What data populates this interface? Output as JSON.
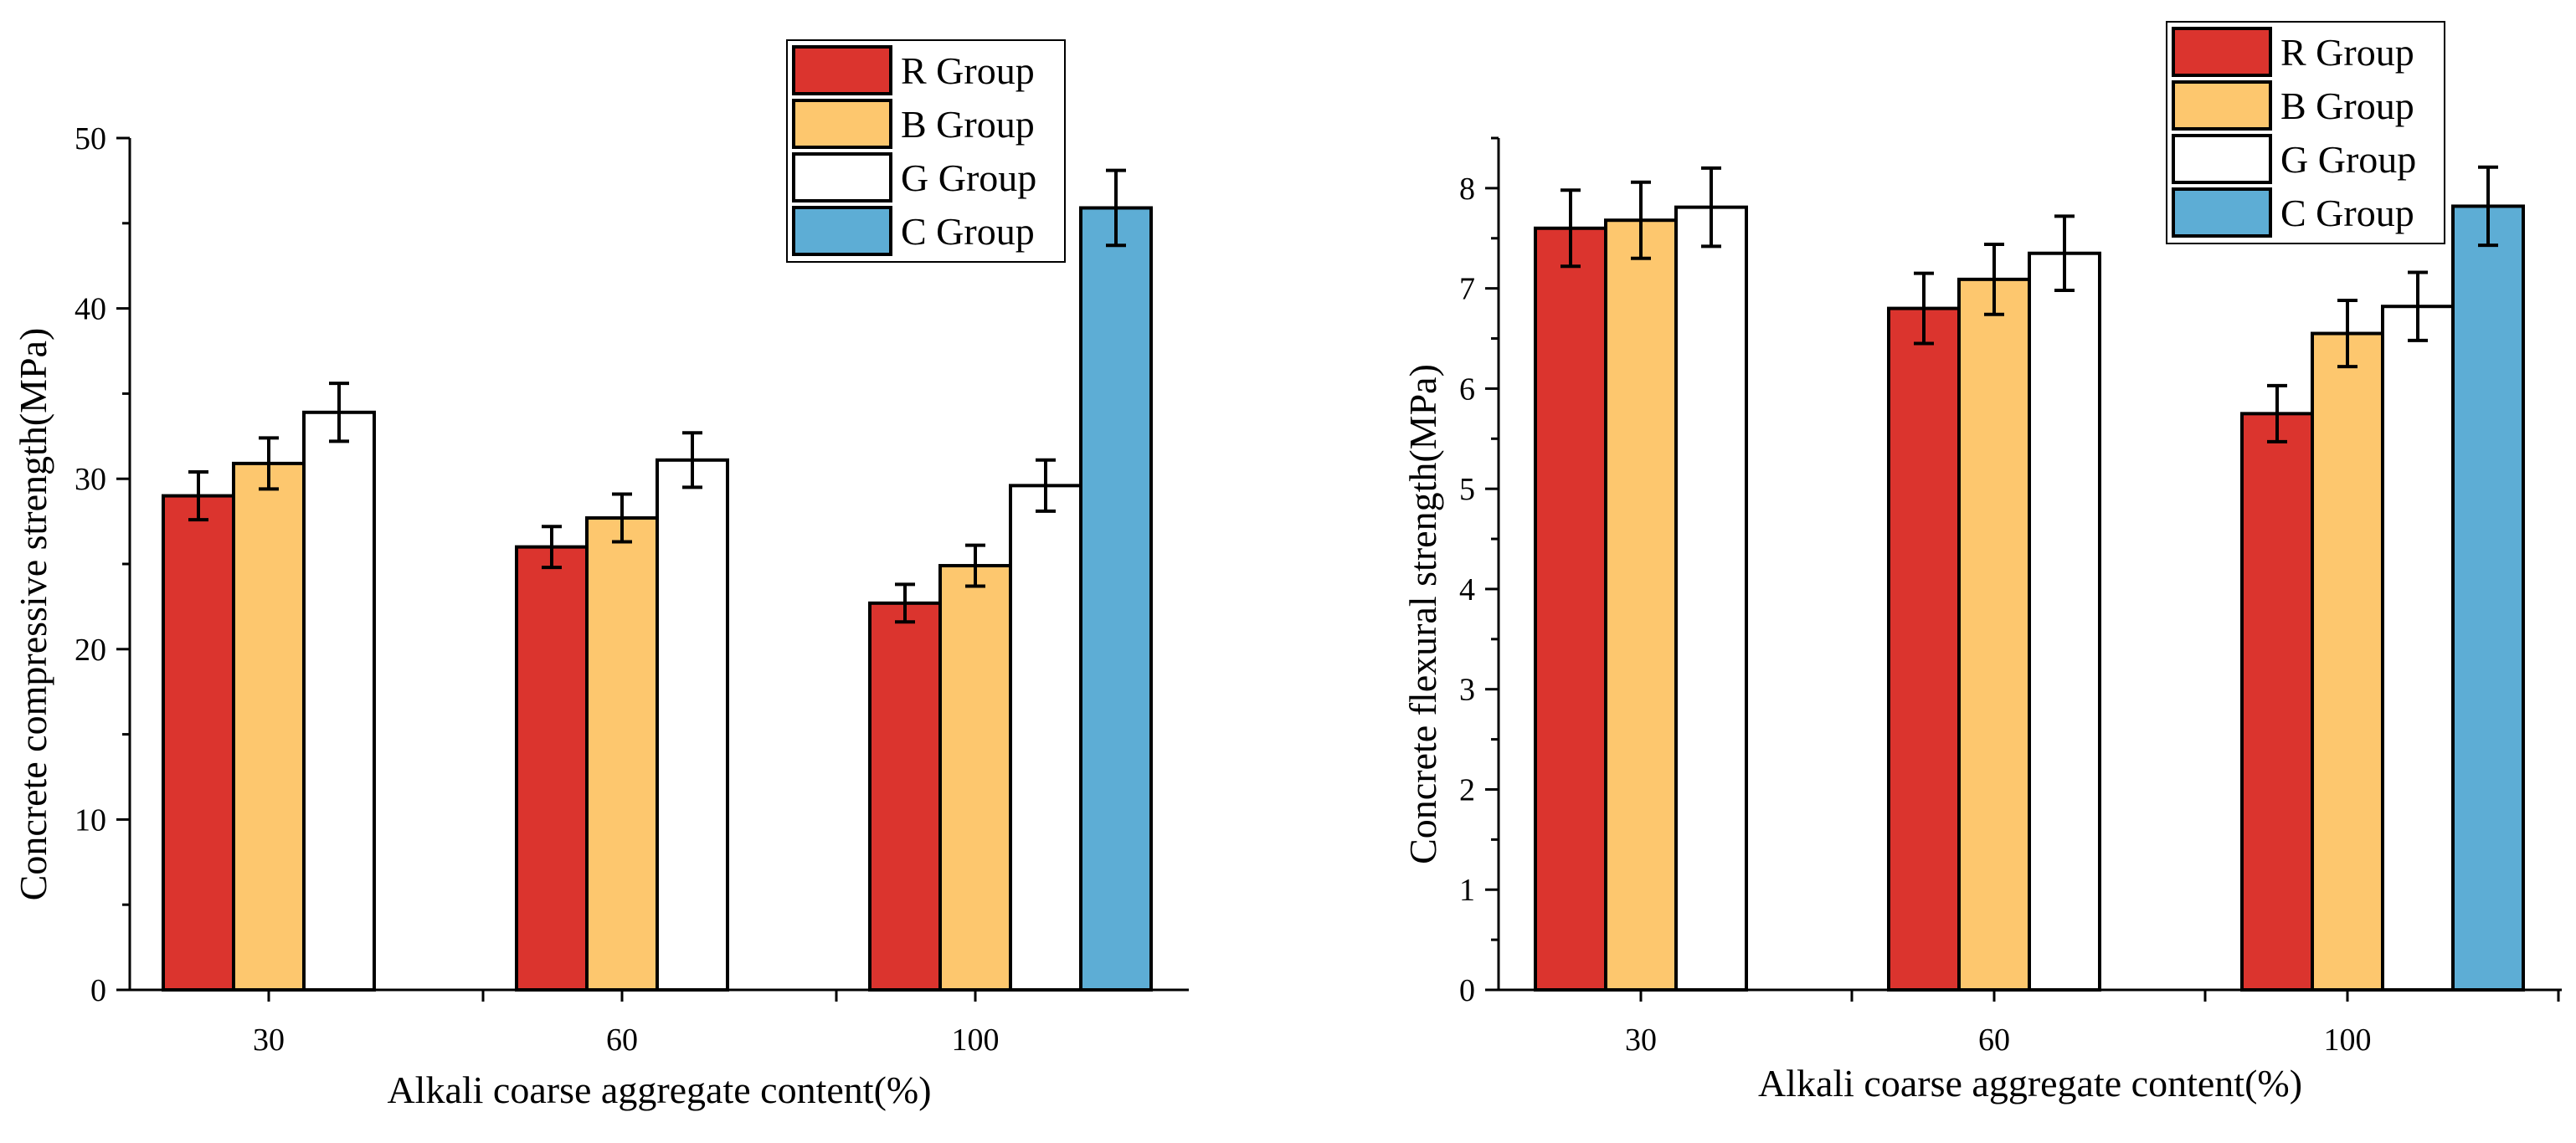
{
  "colors": {
    "R Group": "#DB342E",
    "B Group": "#FDC76E",
    "G Group": "#FFFFFF",
    "C Group": "#5DADD5"
  },
  "chart_data": [
    {
      "type": "bar",
      "xlabel": "Alkali coarse aggregate content(%)",
      "ylabel": "Concrete compressive strength(MPa)",
      "ylim": [
        0,
        50
      ],
      "yticks": [
        "0",
        "10",
        "20",
        "30",
        "40",
        "50"
      ],
      "categories": [
        "30",
        "60",
        "100"
      ],
      "legend_position": "top-right",
      "error_bars": true,
      "series": [
        {
          "name": "R Group",
          "values": [
            29.0,
            26.0,
            22.7
          ],
          "errors": [
            1.4,
            1.2,
            1.1
          ]
        },
        {
          "name": "B Group",
          "values": [
            30.9,
            27.7,
            24.9
          ],
          "errors": [
            1.5,
            1.4,
            1.2
          ]
        },
        {
          "name": "G Group",
          "values": [
            33.9,
            31.1,
            29.6
          ],
          "errors": [
            1.7,
            1.6,
            1.5
          ]
        },
        {
          "name": "C Group",
          "values": [
            null,
            null,
            45.9
          ],
          "errors": [
            null,
            null,
            2.2
          ]
        }
      ]
    },
    {
      "type": "bar",
      "xlabel": "Alkali coarse aggregate content(%)",
      "ylabel": "Concrete flexural strength(MPa)",
      "ylim": [
        0,
        8.5
      ],
      "yticks": [
        "0",
        "1",
        "2",
        "3",
        "4",
        "5",
        "6",
        "7",
        "8"
      ],
      "categories": [
        "30",
        "60",
        "100"
      ],
      "legend_position": "top-right",
      "error_bars": true,
      "series": [
        {
          "name": "R Group",
          "values": [
            7.6,
            6.8,
            5.75
          ],
          "errors": [
            0.38,
            0.35,
            0.28
          ]
        },
        {
          "name": "B Group",
          "values": [
            7.68,
            7.09,
            6.55
          ],
          "errors": [
            0.38,
            0.35,
            0.33
          ]
        },
        {
          "name": "G Group",
          "values": [
            7.81,
            7.35,
            6.82
          ],
          "errors": [
            0.39,
            0.37,
            0.34
          ]
        },
        {
          "name": "C Group",
          "values": [
            null,
            null,
            7.82
          ],
          "errors": [
            null,
            null,
            0.39
          ]
        }
      ]
    }
  ]
}
